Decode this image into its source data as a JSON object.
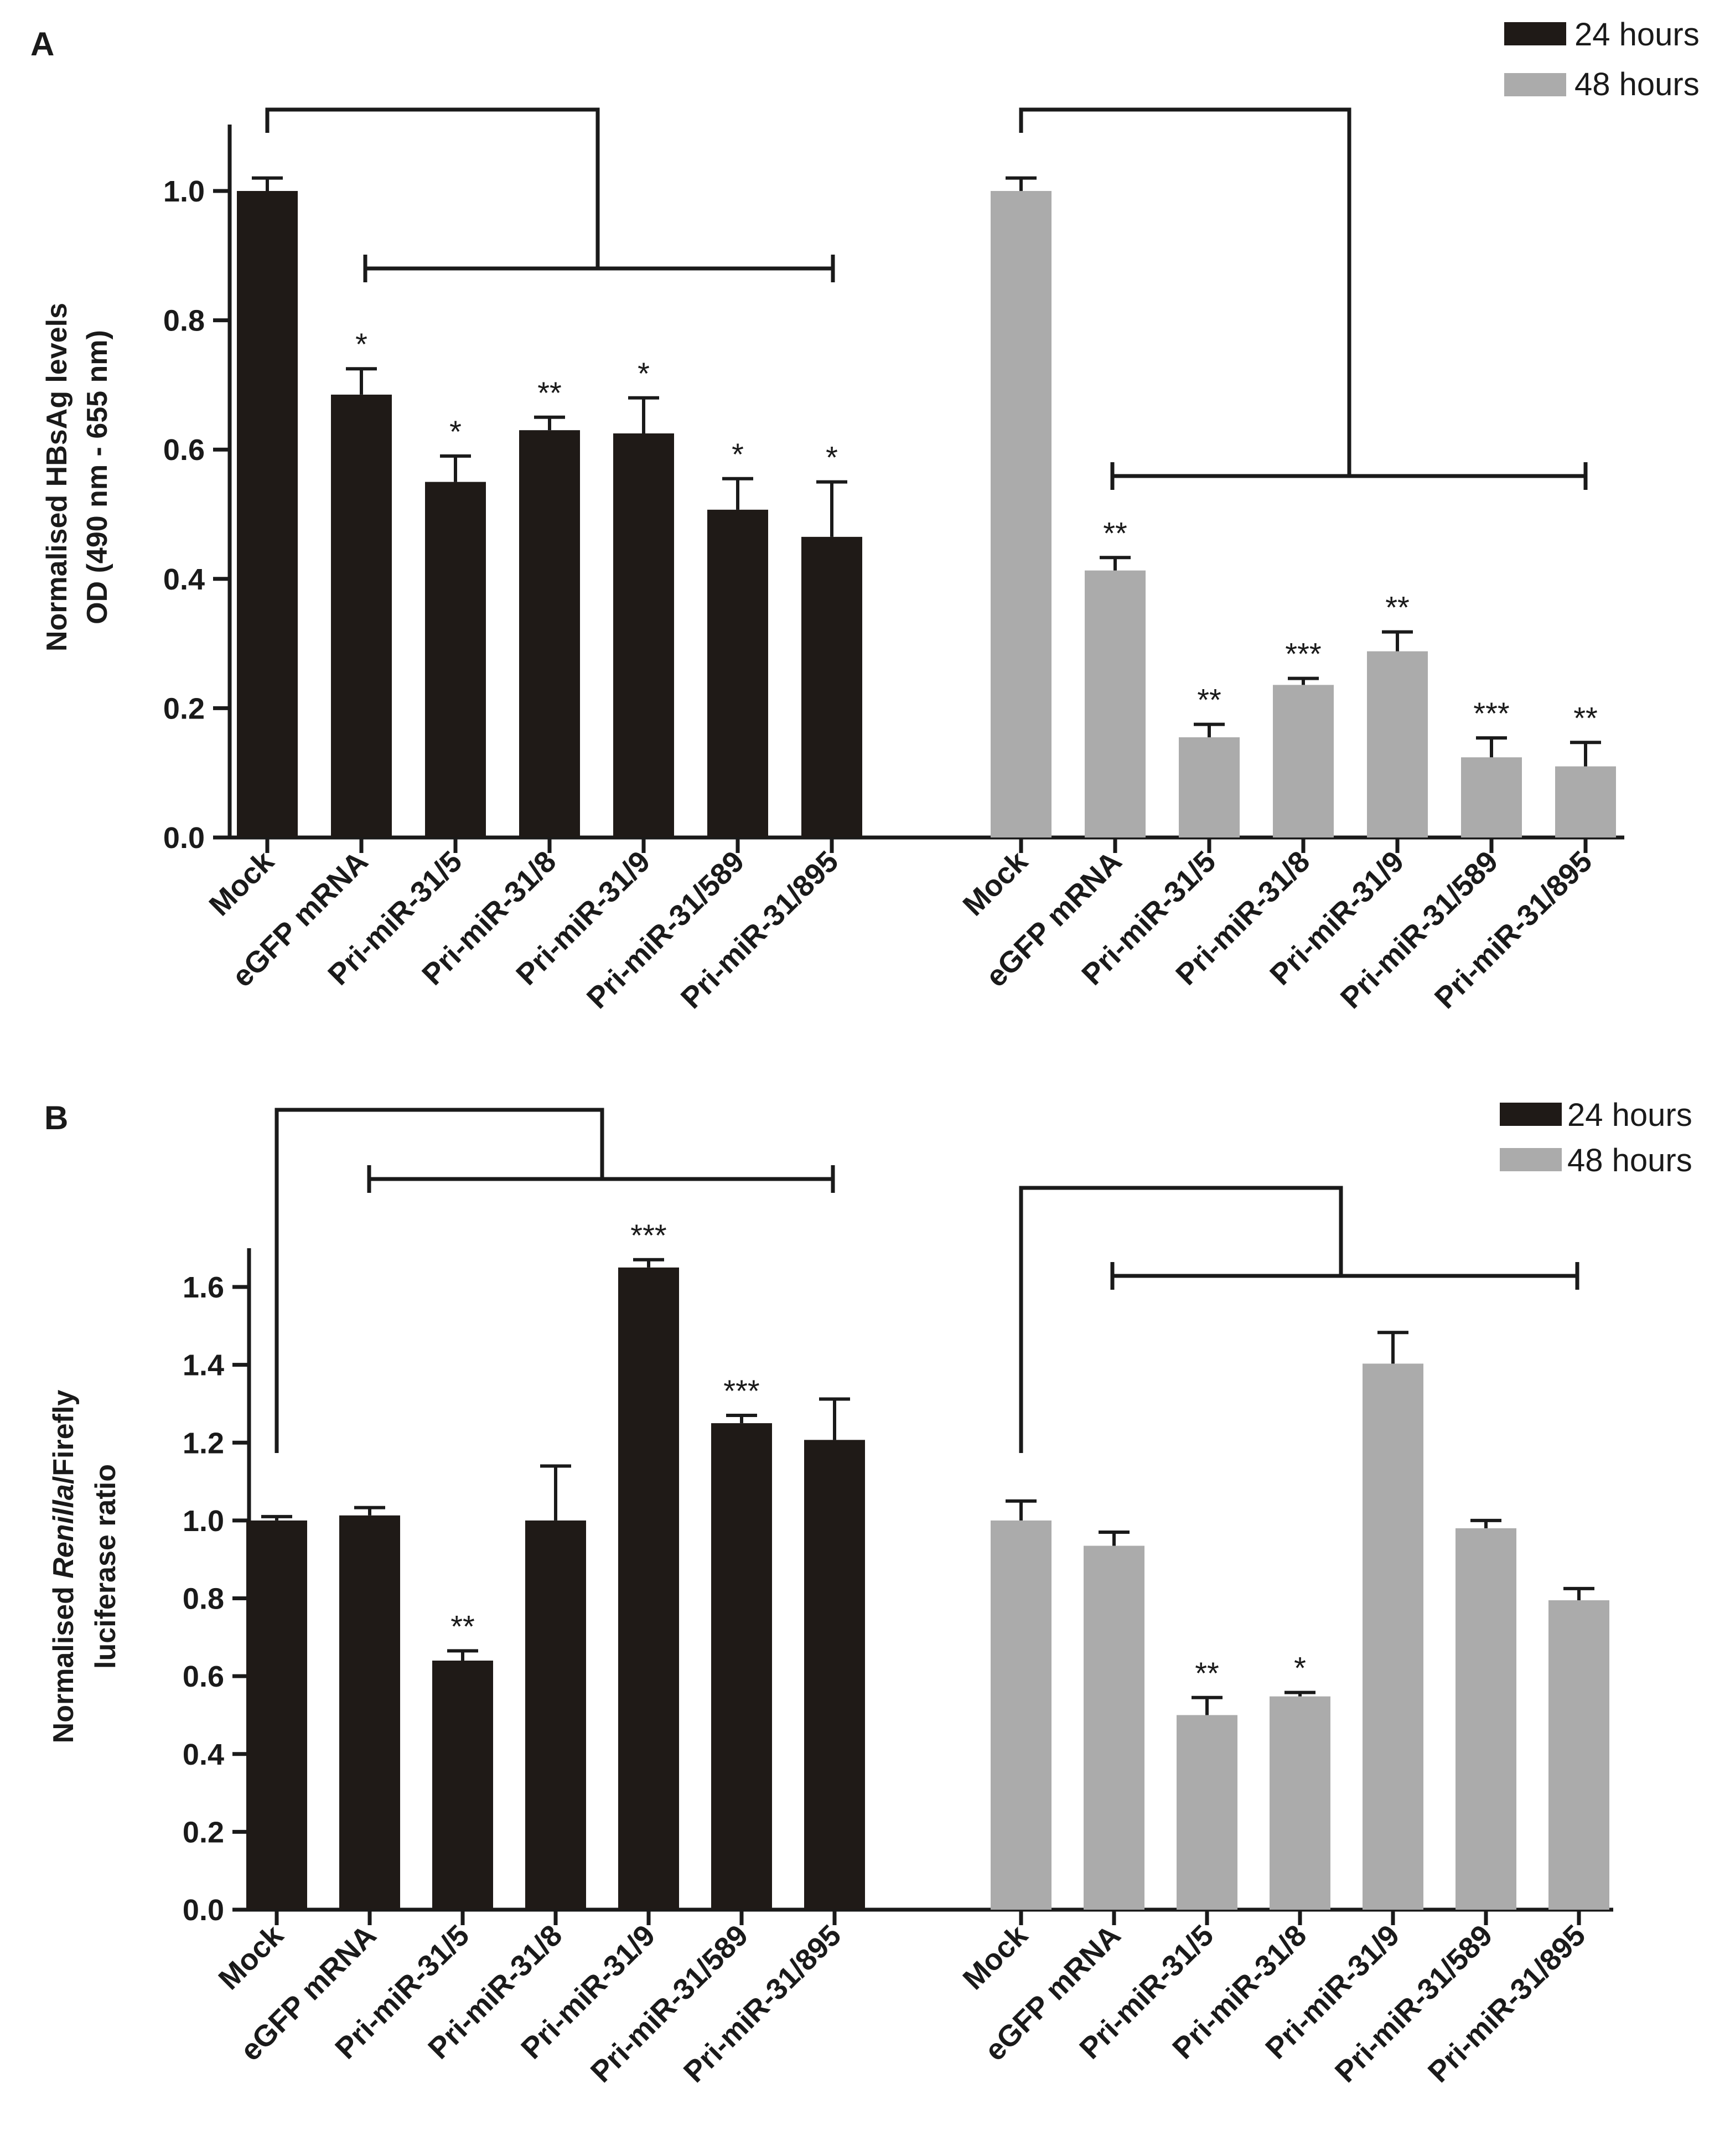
{
  "legend": {
    "series_24": "24 hours",
    "series_48": "48 hours"
  },
  "colors": {
    "series_24": "#1f1a17",
    "series_48": "#ababab",
    "axis": "#1a1a1a"
  },
  "chart_data": [
    {
      "panel": "A",
      "type": "bar",
      "ylabel_lines": [
        "Normalised HBsAg levels",
        "OD (490 nm - 655 nm)"
      ],
      "ylim": [
        0,
        1.1
      ],
      "yticks": [
        0.0,
        0.2,
        0.4,
        0.6,
        0.8,
        1.0
      ],
      "ytick_labels": [
        "0.0",
        "0.2",
        "0.4",
        "0.6",
        "0.8",
        "1.0"
      ],
      "categories": [
        "Mock",
        "eGFP mRNA",
        "Pri-miR-31/5",
        "Pri-miR-31/8",
        "Pri-miR-31/9",
        "Pri-miR-31/589",
        "Pri-miR-31/895"
      ],
      "series": [
        {
          "name": "24 hours",
          "values": [
            1.0,
            0.685,
            0.55,
            0.63,
            0.625,
            0.507,
            0.465
          ],
          "errors": [
            0.02,
            0.04,
            0.04,
            0.02,
            0.055,
            0.048,
            0.085
          ],
          "significance": [
            "",
            "*",
            "*",
            "**",
            "*",
            "*",
            "*"
          ]
        },
        {
          "name": "48 hours",
          "values": [
            1.0,
            0.413,
            0.155,
            0.236,
            0.288,
            0.124,
            0.11
          ],
          "errors": [
            0.02,
            0.02,
            0.02,
            0.01,
            0.03,
            0.03,
            0.037
          ],
          "significance": [
            "",
            "**",
            "**",
            "***",
            "**",
            "***",
            "**"
          ]
        }
      ]
    },
    {
      "panel": "B",
      "type": "bar",
      "ylabel_prefix": "Normalised ",
      "ylabel_italic": "Renilla",
      "ylabel_suffix": "/Firefly",
      "ylabel_line2": "luciferase ratio",
      "ylim": [
        0,
        1.7
      ],
      "yticks": [
        0.0,
        0.2,
        0.4,
        0.6,
        0.8,
        1.0,
        1.2,
        1.4,
        1.6
      ],
      "ytick_labels": [
        "0.0",
        "0.2",
        "0.4",
        "0.6",
        "0.8",
        "1.0",
        "1.2",
        "1.4",
        "1.6"
      ],
      "categories": [
        "Mock",
        "eGFP mRNA",
        "Pri-miR-31/5",
        "Pri-miR-31/8",
        "Pri-miR-31/9",
        "Pri-miR-31/589",
        "Pri-miR-31/895"
      ],
      "series": [
        {
          "name": "24 hours",
          "values": [
            1.0,
            1.013,
            0.64,
            1.0,
            1.65,
            1.25,
            1.207
          ],
          "errors": [
            0.01,
            0.02,
            0.025,
            0.14,
            0.02,
            0.02,
            0.105
          ],
          "significance": [
            "",
            "",
            "**",
            "",
            "***",
            "***",
            ""
          ]
        },
        {
          "name": "48 hours",
          "values": [
            1.0,
            0.935,
            0.5,
            0.548,
            1.403,
            0.98,
            0.795
          ],
          "errors": [
            0.05,
            0.035,
            0.045,
            0.01,
            0.08,
            0.02,
            0.03
          ],
          "significance": [
            "",
            "",
            "**",
            "*",
            "",
            "",
            ""
          ]
        }
      ]
    }
  ]
}
